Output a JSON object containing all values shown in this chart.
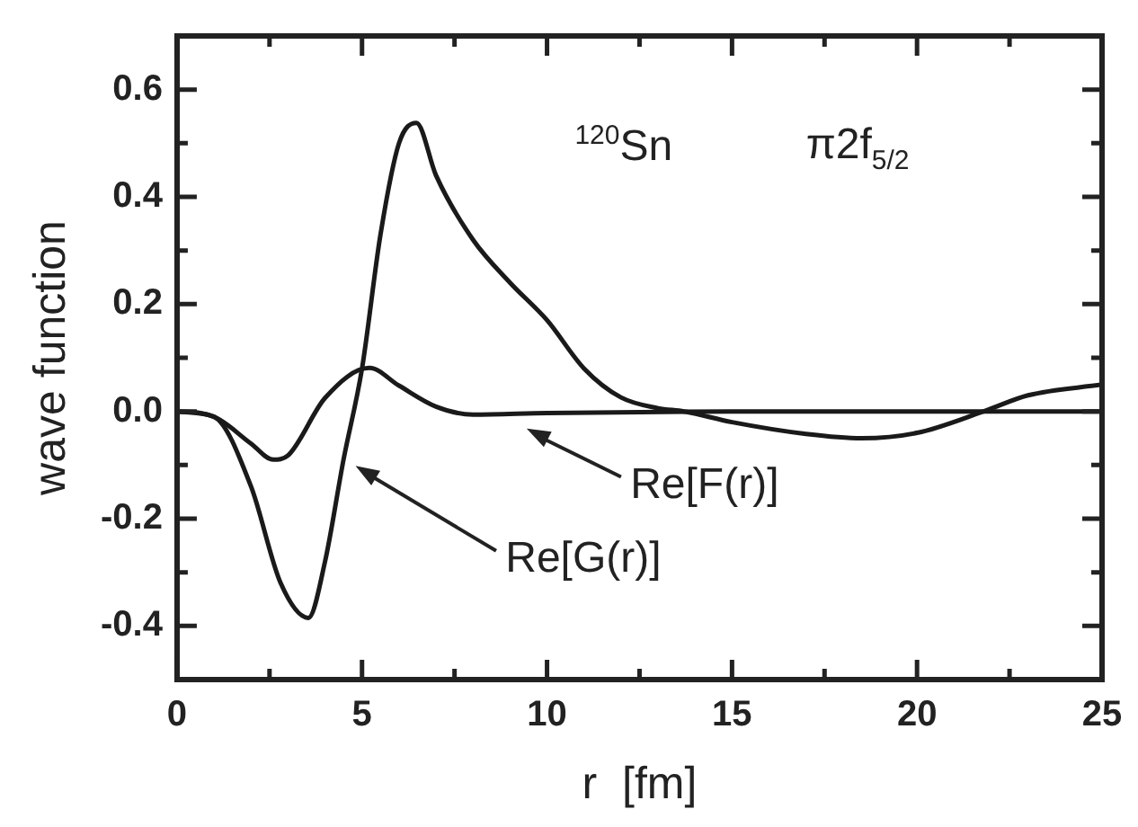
{
  "chart_data": {
    "type": "line",
    "xlabel": "r  [fm]",
    "ylabel": "wave function",
    "xlim": [
      0,
      25
    ],
    "ylim": [
      -0.5,
      0.7
    ],
    "xticks": [
      0,
      {
        "value": 2.5,
        "label": null
      },
      5,
      {
        "value": 7.5,
        "label": null
      },
      10,
      {
        "value": 12.5,
        "label": null
      },
      15,
      {
        "value": 17.5,
        "label": null
      },
      20,
      {
        "value": 22.5,
        "label": null
      },
      25
    ],
    "yticks": [
      {
        "value": -0.5,
        "label": null
      },
      {
        "value": -0.4,
        "label": "-0.4"
      },
      {
        "value": -0.3,
        "label": null
      },
      {
        "value": -0.2,
        "label": "-0.2"
      },
      {
        "value": -0.1,
        "label": null
      },
      {
        "value": 0,
        "label": "0.0"
      },
      {
        "value": 0.1,
        "label": null
      },
      {
        "value": 0.2,
        "label": "0.2"
      },
      {
        "value": 0.3,
        "label": null
      },
      {
        "value": 0.4,
        "label": "0.4"
      },
      {
        "value": 0.5,
        "label": null
      },
      {
        "value": 0.6,
        "label": "0.6"
      },
      {
        "value": 0.7,
        "label": null
      }
    ],
    "grid": false,
    "legend": false,
    "marker": "none",
    "line_style": "solid",
    "series": [
      {
        "color": "#1a1a1a",
        "x": [
          0,
          1,
          2,
          2.8,
          3.55,
          4,
          4.5,
          5,
          5.5,
          6,
          6.47,
          7,
          8,
          9,
          10,
          11,
          12,
          13,
          13.7,
          15,
          17,
          18.5,
          20,
          21.8,
          23,
          25
        ],
        "values": [
          0,
          -0.01,
          -0.14,
          -0.32,
          -0.385,
          -0.28,
          -0.09,
          0.08,
          0.33,
          0.5,
          0.538,
          0.44,
          0.32,
          0.24,
          0.17,
          0.08,
          0.026,
          0.006,
          0,
          -0.02,
          -0.042,
          -0.05,
          -0.04,
          0,
          0.03,
          0.05
        ]
      },
      {
        "color": "#1a1a1a",
        "x": [
          0,
          1,
          2,
          2.6,
          3,
          4,
          5.2,
          6,
          7,
          8,
          10,
          15,
          20,
          25
        ],
        "values": [
          0,
          -0.01,
          -0.06,
          -0.09,
          -0.082,
          0.025,
          0.081,
          0.048,
          0.009,
          -0.006,
          -0.003,
          0,
          0,
          0
        ]
      }
    ],
    "annotations": [
      "Re[F(r)]",
      "Re[G(r)]",
      "$^{120}$Sn",
      "π2f$_{5/2}$"
    ]
  }
}
